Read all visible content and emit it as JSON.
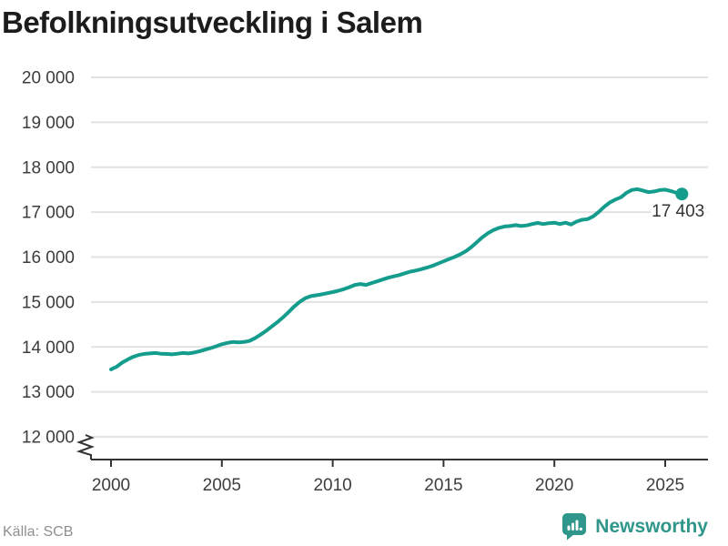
{
  "header": {
    "title": "Befolkningsutveckling i Salem"
  },
  "source": {
    "label": "Källa: SCB"
  },
  "brand": {
    "name": "Newsworthy",
    "icon": "newsworthy-bars-speech-bubble-icon"
  },
  "colors": {
    "line": "#149c8c",
    "marker": "#149c8c",
    "brand": "#2e968a",
    "grid": "#e2e2e2",
    "axis": "#333333",
    "tick_text": "#3d3d3d",
    "annotation_text": "#333333",
    "title_text": "#1c1c1c",
    "source_text": "#8f8f8f"
  },
  "chart_data": {
    "type": "line",
    "title": "Befolkningsutveckling i Salem",
    "xlabel": "",
    "ylabel": "",
    "grid": true,
    "legend_position": "none",
    "axis_break_at_bottom": true,
    "xlim": [
      1999,
      2026.9
    ],
    "ylim": [
      12000,
      20000
    ],
    "x_ticks": [
      2000,
      2005,
      2010,
      2015,
      2020,
      2025
    ],
    "y_ticks": [
      {
        "value": 20000,
        "label": "20 000"
      },
      {
        "value": 19000,
        "label": "19 000"
      },
      {
        "value": 18000,
        "label": "18 000"
      },
      {
        "value": 17000,
        "label": "17 000"
      },
      {
        "value": 16000,
        "label": "16 000"
      },
      {
        "value": 15000,
        "label": "15 000"
      },
      {
        "value": 14000,
        "label": "14 000"
      },
      {
        "value": 13000,
        "label": "13 000"
      },
      {
        "value": 12000,
        "label": "12 000"
      }
    ],
    "annotation": {
      "text": "17 403",
      "value": 17403,
      "x": 2025.75
    },
    "series": [
      {
        "points": [
          [
            2000.0,
            13500
          ],
          [
            2000.25,
            13560
          ],
          [
            2000.5,
            13650
          ],
          [
            2000.75,
            13720
          ],
          [
            2001.0,
            13780
          ],
          [
            2001.25,
            13820
          ],
          [
            2001.5,
            13845
          ],
          [
            2001.75,
            13855
          ],
          [
            2002.0,
            13865
          ],
          [
            2002.25,
            13850
          ],
          [
            2002.5,
            13845
          ],
          [
            2002.75,
            13835
          ],
          [
            2003.0,
            13850
          ],
          [
            2003.25,
            13865
          ],
          [
            2003.5,
            13855
          ],
          [
            2003.75,
            13875
          ],
          [
            2004.0,
            13905
          ],
          [
            2004.25,
            13940
          ],
          [
            2004.5,
            13975
          ],
          [
            2004.75,
            14015
          ],
          [
            2005.0,
            14060
          ],
          [
            2005.25,
            14090
          ],
          [
            2005.5,
            14110
          ],
          [
            2005.75,
            14100
          ],
          [
            2006.0,
            14110
          ],
          [
            2006.25,
            14135
          ],
          [
            2006.5,
            14195
          ],
          [
            2006.75,
            14275
          ],
          [
            2007.0,
            14360
          ],
          [
            2007.25,
            14455
          ],
          [
            2007.5,
            14550
          ],
          [
            2007.75,
            14655
          ],
          [
            2008.0,
            14770
          ],
          [
            2008.25,
            14895
          ],
          [
            2008.5,
            15000
          ],
          [
            2008.75,
            15080
          ],
          [
            2009.0,
            15130
          ],
          [
            2009.25,
            15150
          ],
          [
            2009.5,
            15170
          ],
          [
            2009.75,
            15195
          ],
          [
            2010.0,
            15220
          ],
          [
            2010.25,
            15250
          ],
          [
            2010.5,
            15285
          ],
          [
            2010.75,
            15330
          ],
          [
            2011.0,
            15380
          ],
          [
            2011.25,
            15400
          ],
          [
            2011.5,
            15380
          ],
          [
            2011.75,
            15420
          ],
          [
            2012.0,
            15460
          ],
          [
            2012.25,
            15500
          ],
          [
            2012.5,
            15540
          ],
          [
            2012.75,
            15570
          ],
          [
            2013.0,
            15600
          ],
          [
            2013.25,
            15640
          ],
          [
            2013.5,
            15675
          ],
          [
            2013.75,
            15700
          ],
          [
            2014.0,
            15730
          ],
          [
            2014.25,
            15765
          ],
          [
            2014.5,
            15805
          ],
          [
            2014.75,
            15855
          ],
          [
            2015.0,
            15905
          ],
          [
            2015.25,
            15955
          ],
          [
            2015.5,
            16005
          ],
          [
            2015.75,
            16060
          ],
          [
            2016.0,
            16130
          ],
          [
            2016.25,
            16220
          ],
          [
            2016.5,
            16330
          ],
          [
            2016.75,
            16440
          ],
          [
            2017.0,
            16530
          ],
          [
            2017.25,
            16600
          ],
          [
            2017.5,
            16650
          ],
          [
            2017.75,
            16680
          ],
          [
            2018.0,
            16690
          ],
          [
            2018.25,
            16710
          ],
          [
            2018.5,
            16690
          ],
          [
            2018.75,
            16705
          ],
          [
            2019.0,
            16735
          ],
          [
            2019.25,
            16760
          ],
          [
            2019.5,
            16735
          ],
          [
            2019.75,
            16755
          ],
          [
            2020.0,
            16765
          ],
          [
            2020.25,
            16735
          ],
          [
            2020.5,
            16765
          ],
          [
            2020.75,
            16725
          ],
          [
            2021.0,
            16790
          ],
          [
            2021.25,
            16830
          ],
          [
            2021.5,
            16845
          ],
          [
            2021.75,
            16905
          ],
          [
            2022.0,
            17005
          ],
          [
            2022.25,
            17120
          ],
          [
            2022.5,
            17215
          ],
          [
            2022.75,
            17280
          ],
          [
            2023.0,
            17330
          ],
          [
            2023.25,
            17430
          ],
          [
            2023.5,
            17495
          ],
          [
            2023.75,
            17510
          ],
          [
            2024.0,
            17480
          ],
          [
            2024.25,
            17445
          ],
          [
            2024.5,
            17460
          ],
          [
            2024.75,
            17490
          ],
          [
            2025.0,
            17500
          ],
          [
            2025.25,
            17470
          ],
          [
            2025.5,
            17430
          ],
          [
            2025.75,
            17403
          ]
        ]
      }
    ]
  }
}
